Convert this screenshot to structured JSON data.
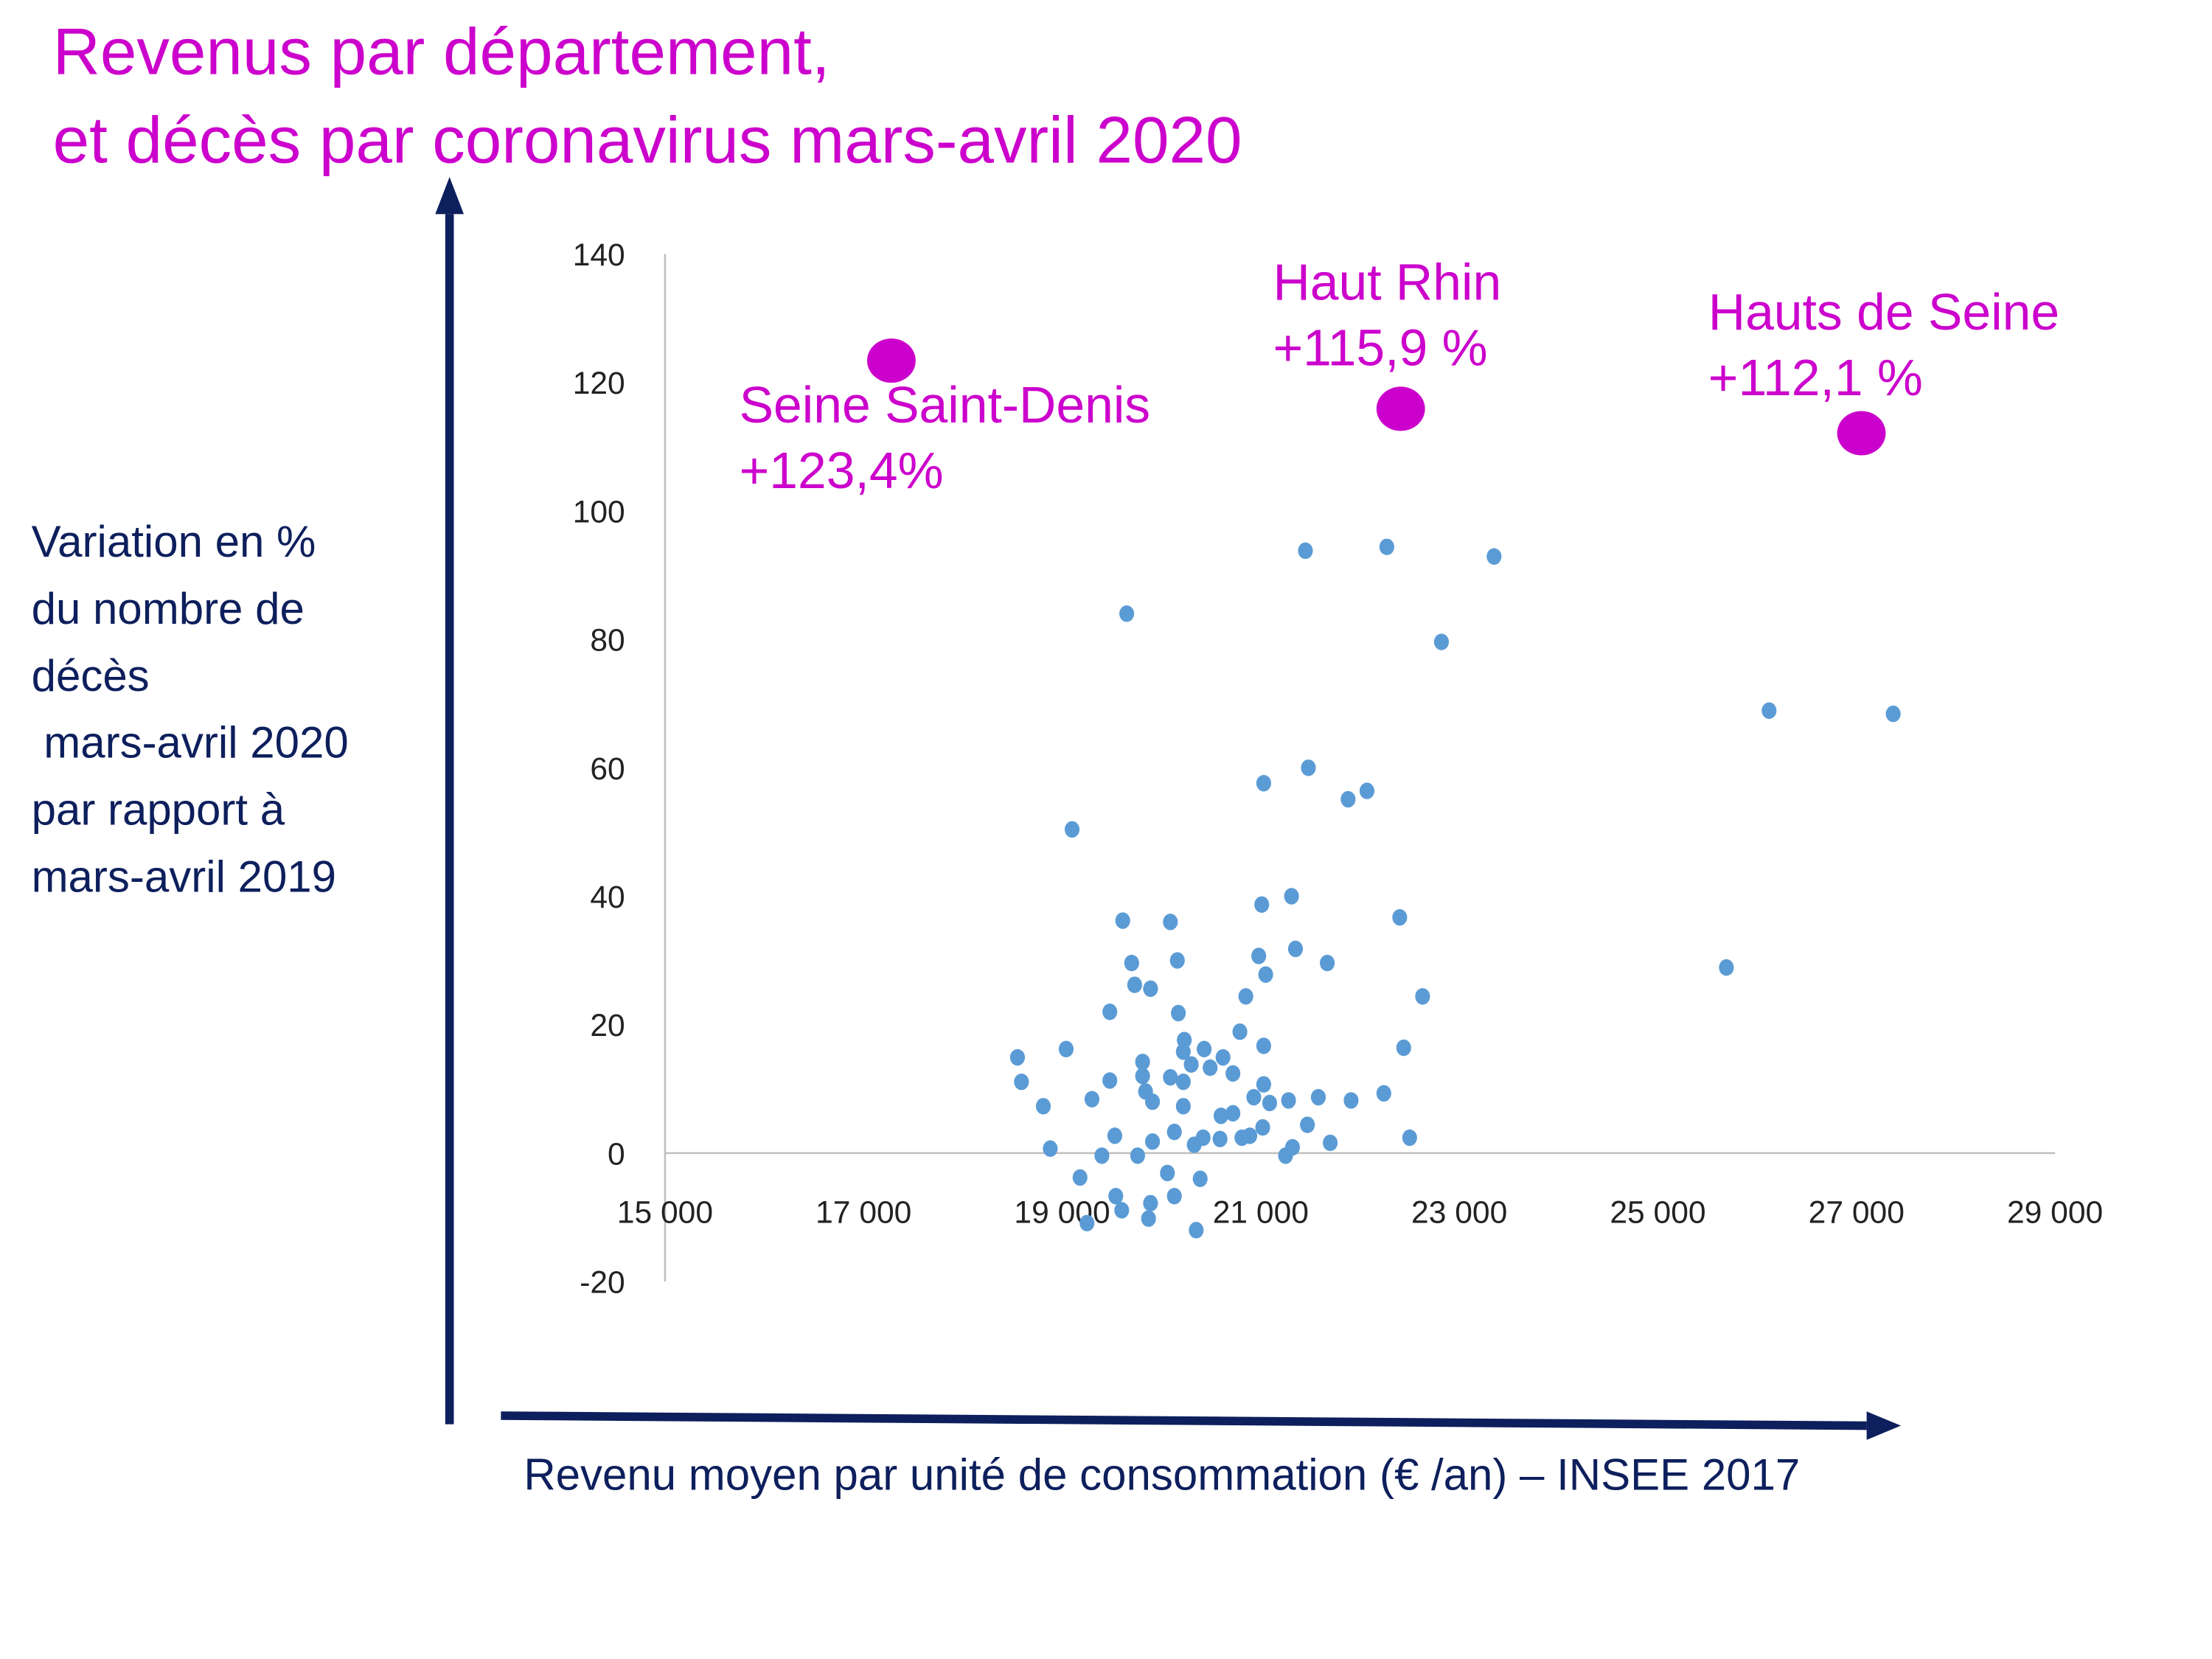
{
  "colors": {
    "title": "#CC00CC",
    "points": "#5B9BD5",
    "highlight": "#CC00CC",
    "arrows": "#0D1F5C",
    "axis_label": "#0D1F5C",
    "gridline": "#BFBFBF"
  },
  "chart_data": {
    "type": "scatter",
    "title_lines": [
      "Revenus par département,",
      "et décès par coronavirus mars-avril 2020"
    ],
    "xlabel": "Revenu moyen par unité de consommation (€ /an) – INSEE 2017",
    "ylabel_lines": [
      "Variation en %",
      "du nombre de",
      "décès",
      " mars-avril 2020",
      "par rapport à",
      "mars-avril 2019"
    ],
    "xlim": [
      15000,
      29000
    ],
    "ylim": [
      -20,
      140
    ],
    "x_ticks": [
      "15 000",
      "17 000",
      "19 000",
      "21 000",
      "23 000",
      "25 000",
      "27 000",
      "29 000"
    ],
    "x_tick_values": [
      15000,
      17000,
      19000,
      21000,
      23000,
      25000,
      27000,
      29000
    ],
    "y_ticks": [
      "140",
      "120",
      "100",
      "80",
      "60",
      "40",
      "20",
      "0",
      "-20"
    ],
    "y_tick_values": [
      140,
      120,
      100,
      80,
      60,
      40,
      20,
      0,
      -20
    ],
    "grid": false,
    "points": [
      [
        21450,
        93.8
      ],
      [
        22270,
        94.4
      ],
      [
        23350,
        92.9
      ],
      [
        19650,
        84
      ],
      [
        22820,
        79.6
      ],
      [
        19100,
        50.4
      ],
      [
        21030,
        57.6
      ],
      [
        21480,
        60
      ],
      [
        21880,
        55.1
      ],
      [
        22070,
        56.4
      ],
      [
        26120,
        68.9
      ],
      [
        27370,
        68.4
      ],
      [
        25690,
        28.9
      ],
      [
        19610,
        36.2
      ],
      [
        20090,
        36
      ],
      [
        21010,
        38.7
      ],
      [
        21310,
        40
      ],
      [
        22400,
        36.7
      ],
      [
        19700,
        29.6
      ],
      [
        20160,
        30
      ],
      [
        20980,
        30.7
      ],
      [
        21350,
        31.8
      ],
      [
        21670,
        29.6
      ],
      [
        21050,
        27.8
      ],
      [
        19730,
        26.2
      ],
      [
        19890,
        25.6
      ],
      [
        20850,
        24.4
      ],
      [
        22630,
        24.4
      ],
      [
        19480,
        22
      ],
      [
        20170,
        21.8
      ],
      [
        20790,
        18.9
      ],
      [
        18550,
        14.9
      ],
      [
        19040,
        16.2
      ],
      [
        20230,
        17.6
      ],
      [
        20430,
        16.2
      ],
      [
        20220,
        15.8
      ],
      [
        20620,
        14.9
      ],
      [
        19810,
        14.2
      ],
      [
        21030,
        16.7
      ],
      [
        22440,
        16.4
      ],
      [
        18590,
        11.1
      ],
      [
        19810,
        12
      ],
      [
        20090,
        11.8
      ],
      [
        20220,
        11.1
      ],
      [
        20300,
        13.8
      ],
      [
        20490,
        13.3
      ],
      [
        20720,
        12.4
      ],
      [
        19480,
        11.3
      ],
      [
        18810,
        7.3
      ],
      [
        19300,
        8.4
      ],
      [
        19840,
        9.6
      ],
      [
        19910,
        8
      ],
      [
        20220,
        7.3
      ],
      [
        21030,
        10.7
      ],
      [
        20930,
        8.7
      ],
      [
        21090,
        7.8
      ],
      [
        21280,
        8.2
      ],
      [
        21580,
        8.7
      ],
      [
        21910,
        8.2
      ],
      [
        22240,
        9.3
      ],
      [
        20600,
        5.8
      ],
      [
        20720,
        6.2
      ],
      [
        20130,
        3.3
      ],
      [
        19530,
        2.7
      ],
      [
        20420,
        2.4
      ],
      [
        20590,
        2.2
      ],
      [
        20810,
        2.4
      ],
      [
        20890,
        2.7
      ],
      [
        21020,
        4
      ],
      [
        21470,
        4.4
      ],
      [
        21700,
        1.6
      ],
      [
        22500,
        2.4
      ],
      [
        18880,
        0.7
      ],
      [
        19910,
        1.8
      ],
      [
        20330,
        1.3
      ],
      [
        21320,
        0.9
      ],
      [
        21250,
        -0.4
      ],
      [
        19400,
        -0.4
      ],
      [
        19760,
        -0.4
      ],
      [
        19180,
        -3.8
      ],
      [
        20060,
        -3.1
      ],
      [
        20390,
        -4
      ],
      [
        19540,
        -6.7
      ],
      [
        20130,
        -6.7
      ],
      [
        19890,
        -7.8
      ],
      [
        19600,
        -8.9
      ],
      [
        19250,
        -10.9
      ],
      [
        19870,
        -10.2
      ],
      [
        20350,
        -12
      ]
    ],
    "highlights": [
      {
        "name": "Seine Saint-Denis",
        "label": "+123,4%",
        "x": 17280,
        "y": 123.4
      },
      {
        "name": "Haut Rhin",
        "label": "+115,9 %",
        "x": 22410,
        "y": 115.9
      },
      {
        "name": "Hauts de Seine",
        "label": "+112,1 %",
        "x": 27050,
        "y": 112.1
      }
    ]
  }
}
